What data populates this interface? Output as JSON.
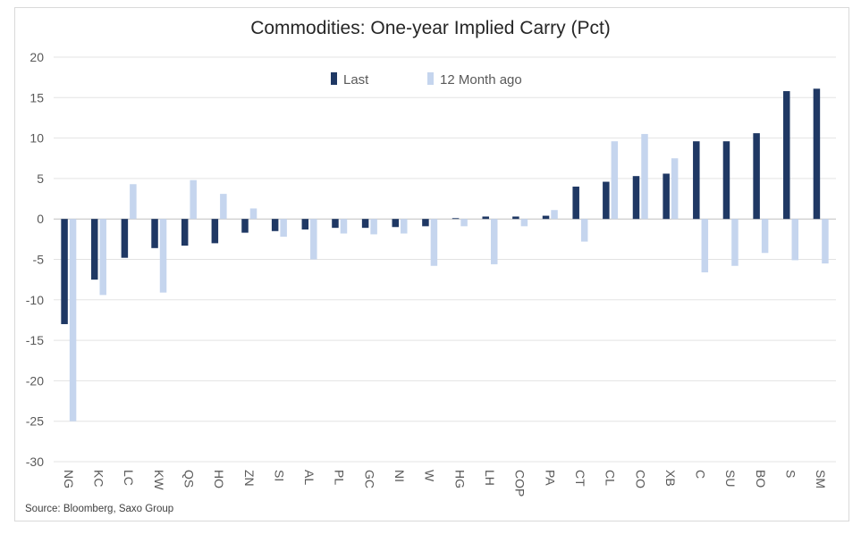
{
  "chart_data": {
    "type": "bar",
    "title": "Commodities: One-year Implied Carry (Pct)",
    "source": "Source: Bloomberg, Saxo Group",
    "categories": [
      "NG",
      "KC",
      "LC",
      "KW",
      "QS",
      "HO",
      "ZN",
      "SI",
      "AL",
      "PL",
      "GC",
      "NI",
      "W",
      "HG",
      "LH",
      "COP",
      "PA",
      "CT",
      "CL",
      "CO",
      "XB",
      "C",
      "SU",
      "BO",
      "S",
      "SM"
    ],
    "series": [
      {
        "name": "Last",
        "color": "#1f3864",
        "values": [
          -13,
          -7.5,
          -4.8,
          -3.6,
          -3.3,
          -3.0,
          -1.7,
          -1.5,
          -1.3,
          -1.1,
          -1.1,
          -1.0,
          -0.9,
          0.1,
          0.3,
          0.3,
          0.4,
          4.0,
          4.6,
          5.3,
          5.6,
          9.6,
          9.6,
          10.6,
          15.8,
          16.1
        ]
      },
      {
        "name": "12 Month ago",
        "color": "#c5d5ee",
        "values": [
          -25,
          -9.4,
          4.3,
          -9.1,
          4.8,
          3.1,
          1.3,
          -2.2,
          -5.0,
          -1.8,
          -1.9,
          -1.8,
          -5.8,
          -0.9,
          -5.6,
          -0.9,
          1.1,
          -2.8,
          9.6,
          10.5,
          7.5,
          -6.6,
          -5.8,
          -4.2,
          -5.1,
          -5.5
        ]
      }
    ],
    "ylim": [
      -30,
      20
    ],
    "yticks": [
      20,
      15,
      10,
      5,
      0,
      -5,
      -10,
      -15,
      -20,
      -25,
      -30
    ],
    "grid": true,
    "legend": "top-center"
  }
}
